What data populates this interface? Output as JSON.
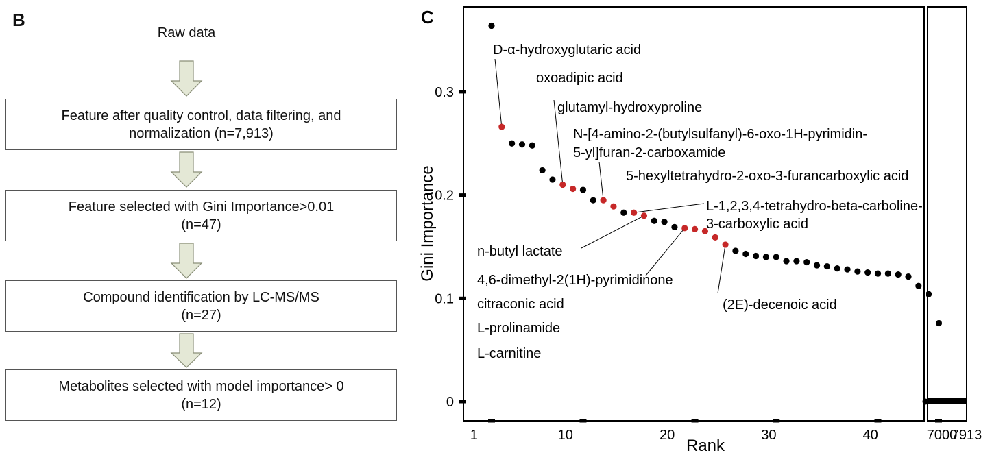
{
  "panel_b": {
    "label": "B",
    "steps": [
      {
        "lines": [
          "Raw data"
        ]
      },
      {
        "lines": [
          "Feature after quality control, data filtering, and",
          "normalization (n=7,913)"
        ]
      },
      {
        "lines": [
          "Feature selected with Gini Importance>0.01",
          "(n=47)"
        ]
      },
      {
        "lines": [
          "Compound identification by LC-MS/MS",
          "(n=27)"
        ]
      },
      {
        "lines": [
          "Metabolites selected with model importance> 0",
          "(n=12)"
        ]
      }
    ],
    "arrow_color": "#e4e8d6"
  },
  "chart_data": {
    "type": "scatter",
    "panel_label": "C",
    "xlabel": "Rank",
    "ylabel": "Gini Importance",
    "xlim": [
      1,
      47
    ],
    "ylim": [
      0,
      0.37
    ],
    "x_ticks": [
      1,
      10,
      20,
      30,
      40
    ],
    "x_break_ticks": [
      "7000",
      "7913"
    ],
    "y_ticks": [
      0,
      0.1,
      0.2,
      0.3
    ],
    "y_tick_labels": [
      "0",
      "0.1",
      "0.2",
      "0.3"
    ],
    "colors": {
      "highlight": "#c62828",
      "other": "#000000"
    },
    "points": [
      {
        "rank": 3,
        "value": 0.364,
        "highlight": false
      },
      {
        "rank": 4,
        "value": 0.266,
        "highlight": true
      },
      {
        "rank": 5,
        "value": 0.25,
        "highlight": false
      },
      {
        "rank": 6,
        "value": 0.249,
        "highlight": false
      },
      {
        "rank": 7,
        "value": 0.248,
        "highlight": false
      },
      {
        "rank": 8,
        "value": 0.224,
        "highlight": false
      },
      {
        "rank": 9,
        "value": 0.215,
        "highlight": false
      },
      {
        "rank": 10,
        "value": 0.21,
        "highlight": true
      },
      {
        "rank": 11,
        "value": 0.206,
        "highlight": true
      },
      {
        "rank": 12,
        "value": 0.205,
        "highlight": false
      },
      {
        "rank": 13,
        "value": 0.195,
        "highlight": false
      },
      {
        "rank": 14,
        "value": 0.195,
        "highlight": true
      },
      {
        "rank": 15,
        "value": 0.189,
        "highlight": true
      },
      {
        "rank": 16,
        "value": 0.183,
        "highlight": false
      },
      {
        "rank": 17,
        "value": 0.183,
        "highlight": true
      },
      {
        "rank": 18,
        "value": 0.18,
        "highlight": true
      },
      {
        "rank": 19,
        "value": 0.175,
        "highlight": false
      },
      {
        "rank": 20,
        "value": 0.174,
        "highlight": false
      },
      {
        "rank": 21,
        "value": 0.169,
        "highlight": false
      },
      {
        "rank": 22,
        "value": 0.168,
        "highlight": true
      },
      {
        "rank": 23,
        "value": 0.167,
        "highlight": true
      },
      {
        "rank": 24,
        "value": 0.165,
        "highlight": true
      },
      {
        "rank": 25,
        "value": 0.159,
        "highlight": true
      },
      {
        "rank": 26,
        "value": 0.152,
        "highlight": true
      },
      {
        "rank": 27,
        "value": 0.146,
        "highlight": false
      },
      {
        "rank": 28,
        "value": 0.143,
        "highlight": false
      },
      {
        "rank": 29,
        "value": 0.141,
        "highlight": false
      },
      {
        "rank": 30,
        "value": 0.14,
        "highlight": false
      },
      {
        "rank": 31,
        "value": 0.14,
        "highlight": false
      },
      {
        "rank": 32,
        "value": 0.136,
        "highlight": false
      },
      {
        "rank": 33,
        "value": 0.136,
        "highlight": false
      },
      {
        "rank": 34,
        "value": 0.135,
        "highlight": false
      },
      {
        "rank": 35,
        "value": 0.132,
        "highlight": false
      },
      {
        "rank": 36,
        "value": 0.131,
        "highlight": false
      },
      {
        "rank": 37,
        "value": 0.129,
        "highlight": false
      },
      {
        "rank": 38,
        "value": 0.128,
        "highlight": false
      },
      {
        "rank": 39,
        "value": 0.126,
        "highlight": false
      },
      {
        "rank": 40,
        "value": 0.125,
        "highlight": false
      },
      {
        "rank": 41,
        "value": 0.124,
        "highlight": false
      },
      {
        "rank": 42,
        "value": 0.124,
        "highlight": false
      },
      {
        "rank": 43,
        "value": 0.123,
        "highlight": false
      },
      {
        "rank": 44,
        "value": 0.121,
        "highlight": false
      },
      {
        "rank": 45,
        "value": 0.112,
        "highlight": false
      },
      {
        "rank": 46,
        "value": 0.104,
        "highlight": false
      },
      {
        "rank": 47,
        "value": 0.076,
        "highlight": false
      }
    ],
    "tail": {
      "label_from": "7000",
      "label_to": "7913",
      "value": 0.0
    },
    "annotations": [
      {
        "text": "D-α-hydroxyglutaric acid",
        "rank": 4
      },
      {
        "text": "oxoadipic acid",
        "rank": null
      },
      {
        "text": "glutamyl-hydroxyproline",
        "rank": 10
      },
      {
        "text": "N-[4-amino-2-(butylsulfanyl)-6-oxo-1H-pyrimidin-",
        "rank": 14
      },
      {
        "text": "5-yl]furan-2-carboxamide",
        "rank": null
      },
      {
        "text": "5-hexyltetrahydro-2-oxo-3-furancarboxylic acid",
        "rank": null
      },
      {
        "text": "L-1,2,3,4-tetrahydro-beta-carboline-",
        "rank": 17
      },
      {
        "text": "3-carboxylic acid",
        "rank": null
      },
      {
        "text": "n-butyl lactate",
        "rank": 18
      },
      {
        "text": "4,6-dimethyl-2(1H)-pyrimidinone",
        "rank": 22
      },
      {
        "text": "(2E)-decenoic acid",
        "rank": 26
      },
      {
        "text": "citraconic acid",
        "rank": null
      },
      {
        "text": "L-prolinamide",
        "rank": null
      },
      {
        "text": "L-carnitine",
        "rank": null
      }
    ]
  }
}
